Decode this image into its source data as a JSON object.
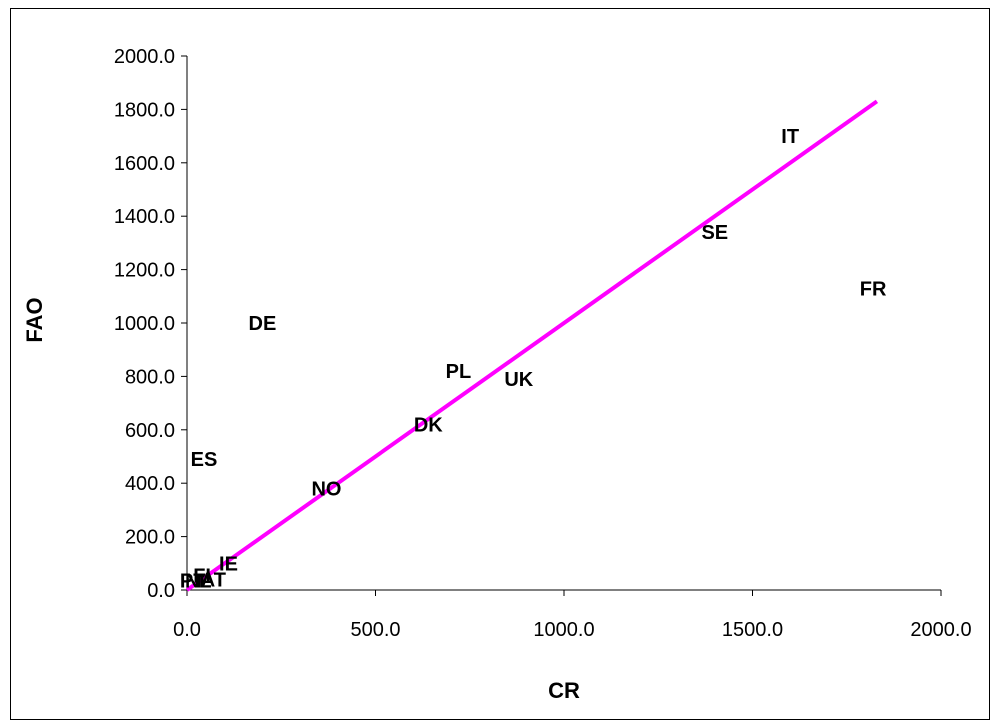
{
  "chart_data": {
    "type": "scatter",
    "title": "",
    "xlabel": "CR",
    "ylabel": "FAO",
    "xlim": [
      0,
      2000
    ],
    "ylim": [
      0,
      2000
    ],
    "x_ticks": [
      0,
      500,
      1000,
      1500,
      2000
    ],
    "y_ticks": [
      0,
      200,
      400,
      600,
      800,
      1000,
      1200,
      1400,
      1600,
      1800,
      2000
    ],
    "x_tick_labels": [
      "0.0",
      "500.0",
      "1000.0",
      "1500.0",
      "2000.0"
    ],
    "y_tick_labels": [
      "0.0",
      "200.0",
      "400.0",
      "600.0",
      "800.0",
      "1000.0",
      "1200.0",
      "1400.0",
      "1600.0",
      "1800.0",
      "2000.0"
    ],
    "grid": false,
    "legend": false,
    "points": [
      {
        "label": "IT",
        "x": 1600,
        "y": 1700
      },
      {
        "label": "SE",
        "x": 1400,
        "y": 1340
      },
      {
        "label": "FR",
        "x": 1820,
        "y": 1130
      },
      {
        "label": "DE",
        "x": 200,
        "y": 1000
      },
      {
        "label": "PL",
        "x": 720,
        "y": 820
      },
      {
        "label": "UK",
        "x": 880,
        "y": 790
      },
      {
        "label": "DK",
        "x": 640,
        "y": 620
      },
      {
        "label": "ES",
        "x": 45,
        "y": 490
      },
      {
        "label": "NO",
        "x": 370,
        "y": 380
      },
      {
        "label": "IE",
        "x": 110,
        "y": 100
      },
      {
        "label": "FI",
        "x": 40,
        "y": 55
      },
      {
        "label": "AT",
        "x": 70,
        "y": 40
      },
      {
        "label": "PT",
        "x": 15,
        "y": 35
      },
      {
        "label": "NL",
        "x": 30,
        "y": 35
      }
    ],
    "trendline": {
      "x": [
        0,
        1830
      ],
      "y": [
        0,
        1830
      ],
      "color": "#ff00ff"
    }
  }
}
